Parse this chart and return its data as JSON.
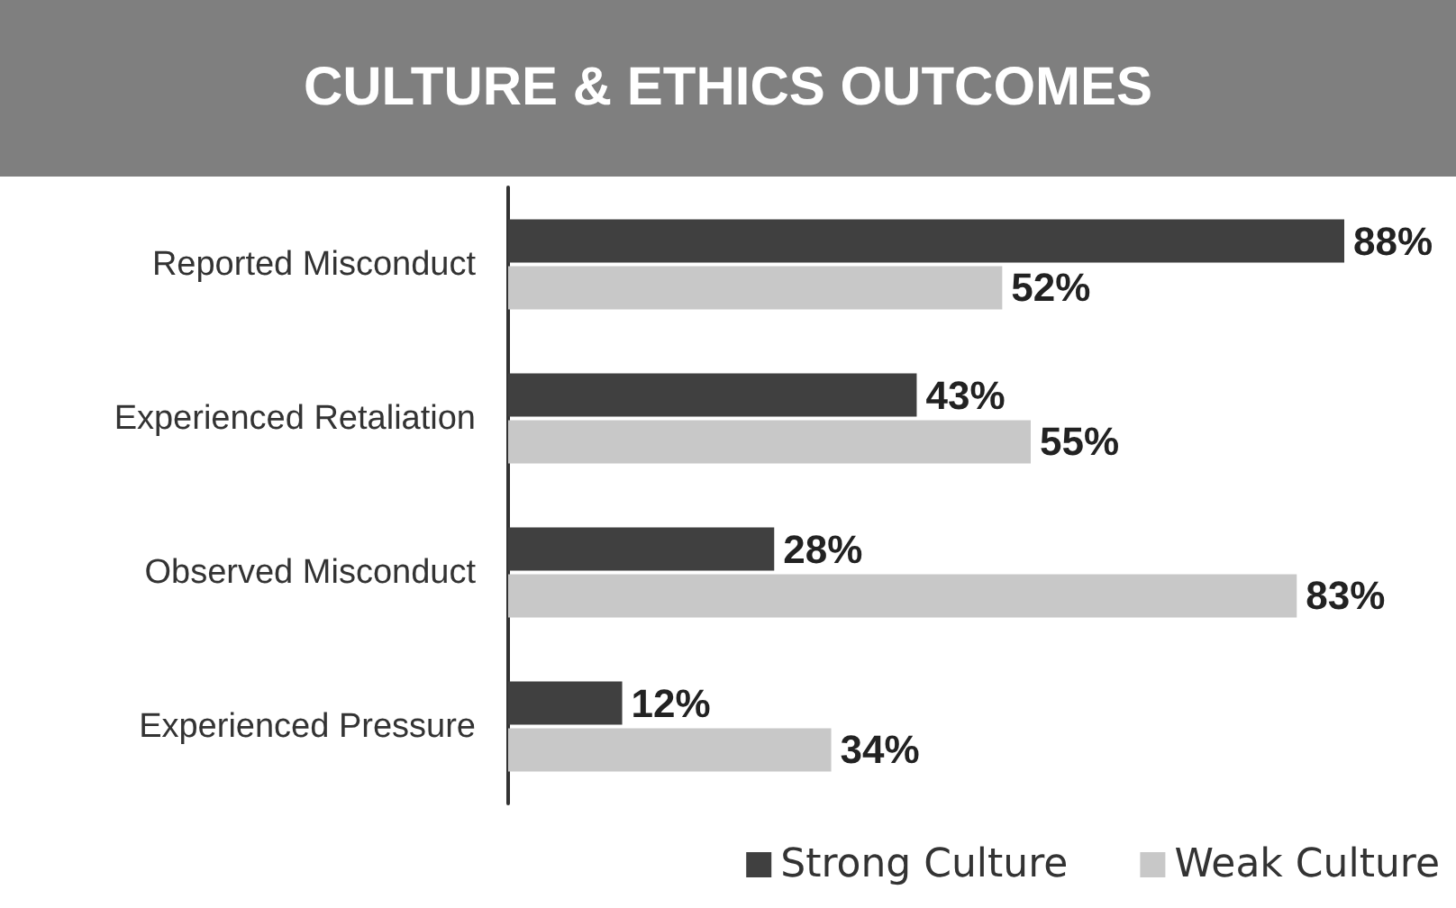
{
  "chart_data": {
    "type": "bar",
    "orientation": "horizontal",
    "title": "CULTURE & ETHICS OUTCOMES",
    "categories": [
      "Reported Misconduct",
      "Experienced Retaliation",
      "Observed Misconduct",
      "Experienced Pressure"
    ],
    "series": [
      {
        "name": "Strong Culture",
        "color": "#404040",
        "values": [
          88,
          43,
          28,
          12
        ],
        "value_labels": [
          "88%",
          "43%",
          "28%",
          "12%"
        ]
      },
      {
        "name": "Weak Culture",
        "color": "#c8c8c8",
        "values": [
          52,
          55,
          83,
          34
        ],
        "value_labels": [
          "52%",
          "55%",
          "83%",
          "34%"
        ]
      }
    ],
    "legend": "bottom right"
  }
}
